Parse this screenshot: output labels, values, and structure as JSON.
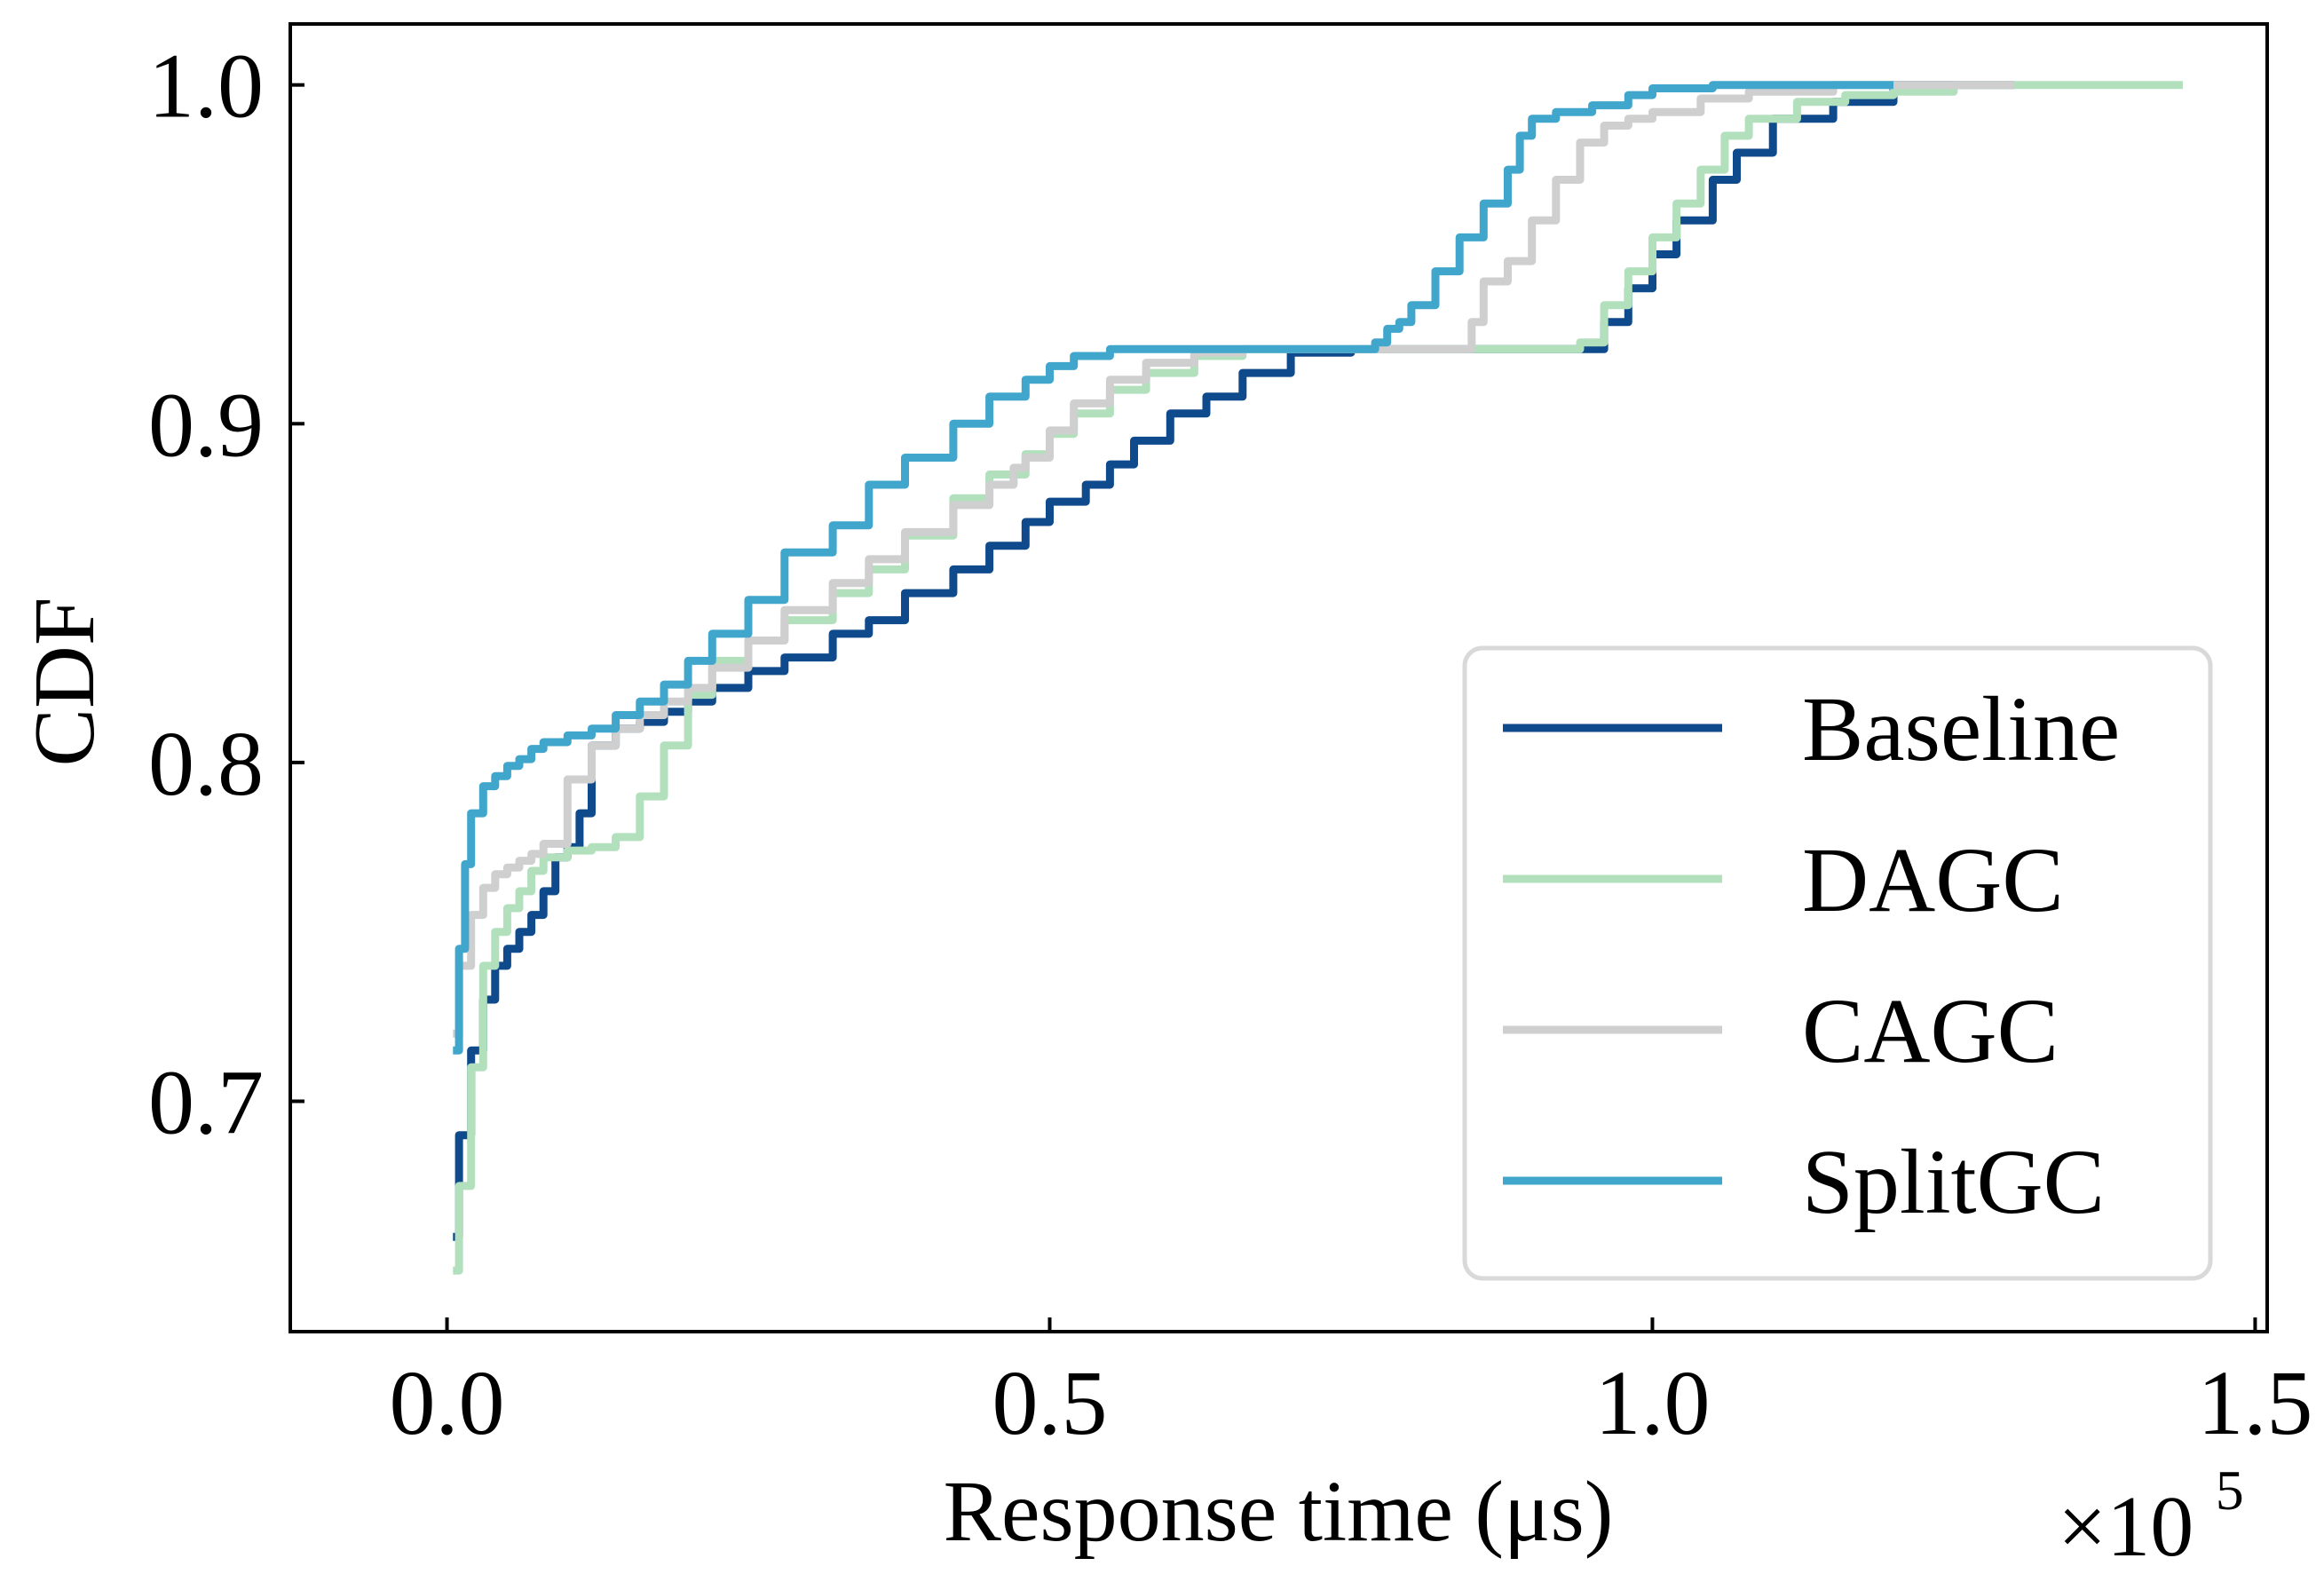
{
  "chart_data": {
    "type": "line",
    "title": "",
    "xlabel": "Response time (μs)",
    "ylabel": "CDF",
    "x_multiplier": "×10",
    "x_multiplier_exp": "5",
    "xlim": [
      -0.13,
      1.51
    ],
    "ylim": [
      0.632,
      1.018
    ],
    "xticks": [
      0.0,
      0.5,
      1.0,
      1.5
    ],
    "xtick_labels": [
      "0.0",
      "0.5",
      "1.0",
      "1.5"
    ],
    "yticks": [
      0.7,
      0.8,
      0.9,
      1.0
    ],
    "ytick_labels": [
      "0.7",
      "0.8",
      "0.9",
      "1.0"
    ],
    "grid": false,
    "legend_position": "lower-right",
    "series": [
      {
        "name": "Baseline",
        "color": "#0f4a8c",
        "x": [
          0.005,
          0.01,
          0.02,
          0.03,
          0.04,
          0.05,
          0.06,
          0.07,
          0.08,
          0.09,
          0.1,
          0.11,
          0.12,
          0.14,
          0.16,
          0.18,
          0.2,
          0.22,
          0.25,
          0.28,
          0.32,
          0.35,
          0.38,
          0.42,
          0.45,
          0.48,
          0.5,
          0.53,
          0.55,
          0.57,
          0.6,
          0.63,
          0.66,
          0.7,
          0.75,
          0.8,
          0.85,
          0.9,
          0.94,
          0.96,
          0.98,
          1.0,
          1.02,
          1.05,
          1.07,
          1.1,
          1.15,
          1.2,
          1.25,
          1.3
        ],
        "y": [
          0.66,
          0.69,
          0.715,
          0.73,
          0.74,
          0.745,
          0.75,
          0.755,
          0.762,
          0.772,
          0.775,
          0.785,
          0.805,
          0.81,
          0.812,
          0.815,
          0.818,
          0.822,
          0.827,
          0.831,
          0.838,
          0.842,
          0.85,
          0.857,
          0.864,
          0.871,
          0.877,
          0.882,
          0.888,
          0.895,
          0.903,
          0.908,
          0.915,
          0.921,
          0.922,
          0.922,
          0.922,
          0.922,
          0.922,
          0.93,
          0.94,
          0.95,
          0.96,
          0.972,
          0.98,
          0.99,
          0.995,
          1.0,
          1.0,
          1.0
        ]
      },
      {
        "name": "DAGC",
        "color": "#b2e0bd",
        "x": [
          0.005,
          0.01,
          0.02,
          0.03,
          0.04,
          0.05,
          0.06,
          0.07,
          0.08,
          0.1,
          0.12,
          0.14,
          0.16,
          0.18,
          0.2,
          0.22,
          0.25,
          0.28,
          0.32,
          0.35,
          0.38,
          0.42,
          0.45,
          0.48,
          0.5,
          0.52,
          0.55,
          0.58,
          0.62,
          0.66,
          0.7,
          0.75,
          0.8,
          0.85,
          0.9,
          0.94,
          0.96,
          0.98,
          1.0,
          1.02,
          1.04,
          1.06,
          1.08,
          1.12,
          1.16,
          1.2,
          1.25,
          1.3,
          1.35,
          1.4,
          1.44
        ],
        "y": [
          0.65,
          0.675,
          0.71,
          0.74,
          0.75,
          0.757,
          0.762,
          0.768,
          0.772,
          0.774,
          0.775,
          0.778,
          0.79,
          0.805,
          0.82,
          0.83,
          0.836,
          0.842,
          0.85,
          0.857,
          0.867,
          0.878,
          0.885,
          0.891,
          0.897,
          0.903,
          0.91,
          0.915,
          0.92,
          0.922,
          0.922,
          0.922,
          0.922,
          0.922,
          0.922,
          0.924,
          0.935,
          0.945,
          0.955,
          0.965,
          0.975,
          0.985,
          0.99,
          0.995,
          0.997,
          0.998,
          1.0,
          1.0,
          1.0,
          1.0,
          1.0
        ]
      },
      {
        "name": "CAGC",
        "color": "#cfcfcf",
        "x": [
          0.005,
          0.01,
          0.02,
          0.03,
          0.04,
          0.05,
          0.06,
          0.07,
          0.08,
          0.1,
          0.12,
          0.14,
          0.16,
          0.18,
          0.2,
          0.22,
          0.25,
          0.28,
          0.32,
          0.35,
          0.38,
          0.42,
          0.45,
          0.47,
          0.48,
          0.5,
          0.52,
          0.55,
          0.58,
          0.62,
          0.66,
          0.7,
          0.75,
          0.8,
          0.84,
          0.85,
          0.86,
          0.88,
          0.9,
          0.92,
          0.94,
          0.96,
          0.98,
          1.0,
          1.04,
          1.08,
          1.15,
          1.22,
          1.3
        ],
        "y": [
          0.72,
          0.74,
          0.755,
          0.763,
          0.767,
          0.769,
          0.771,
          0.773,
          0.776,
          0.795,
          0.805,
          0.81,
          0.814,
          0.818,
          0.822,
          0.828,
          0.836,
          0.845,
          0.853,
          0.86,
          0.868,
          0.876,
          0.882,
          0.887,
          0.89,
          0.898,
          0.906,
          0.913,
          0.918,
          0.921,
          0.922,
          0.922,
          0.922,
          0.922,
          0.922,
          0.93,
          0.942,
          0.948,
          0.96,
          0.972,
          0.983,
          0.988,
          0.99,
          0.992,
          0.996,
          0.998,
          1.0,
          1.0,
          1.0
        ]
      },
      {
        "name": "SplitGC",
        "color": "#41a6cc",
        "x": [
          0.005,
          0.01,
          0.015,
          0.02,
          0.03,
          0.04,
          0.05,
          0.06,
          0.07,
          0.08,
          0.1,
          0.12,
          0.14,
          0.16,
          0.18,
          0.2,
          0.22,
          0.25,
          0.28,
          0.32,
          0.35,
          0.38,
          0.42,
          0.45,
          0.48,
          0.5,
          0.52,
          0.55,
          0.6,
          0.65,
          0.7,
          0.75,
          0.77,
          0.78,
          0.79,
          0.8,
          0.82,
          0.84,
          0.86,
          0.88,
          0.89,
          0.9,
          0.92,
          0.95,
          0.98,
          1.0,
          1.05,
          1.1,
          1.15,
          1.2
        ],
        "y": [
          0.715,
          0.745,
          0.77,
          0.785,
          0.793,
          0.796,
          0.799,
          0.801,
          0.804,
          0.806,
          0.808,
          0.81,
          0.814,
          0.818,
          0.823,
          0.83,
          0.838,
          0.848,
          0.862,
          0.87,
          0.882,
          0.89,
          0.9,
          0.908,
          0.913,
          0.917,
          0.92,
          0.922,
          0.922,
          0.922,
          0.922,
          0.922,
          0.924,
          0.928,
          0.93,
          0.935,
          0.945,
          0.955,
          0.965,
          0.975,
          0.985,
          0.99,
          0.992,
          0.994,
          0.997,
          0.999,
          1.0,
          1.0,
          1.0,
          1.0
        ]
      }
    ]
  }
}
